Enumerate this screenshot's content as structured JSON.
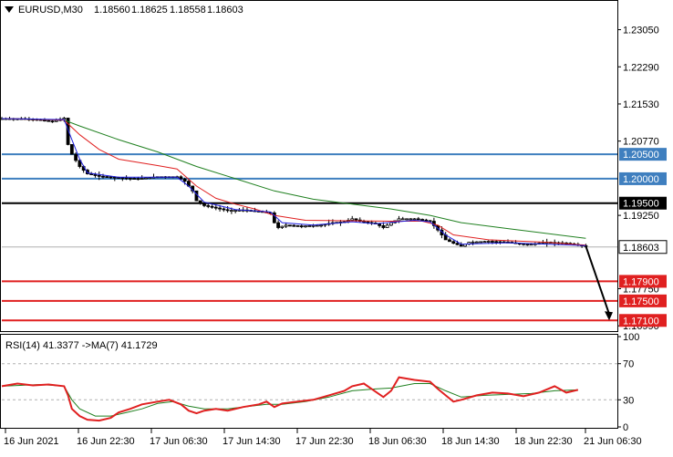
{
  "header": {
    "symbol_tf": "EURUSD,M30",
    "open": "1.18560",
    "high": "1.18625",
    "low": "1.18558",
    "close": "1.18603",
    "menu_icon": "triangle-down-icon"
  },
  "chart_data": [
    {
      "type": "candlestick",
      "title": "",
      "price_ticks": [
        1.2305,
        1.2229,
        1.2153,
        1.2077,
        1.1925,
        1.1775,
        1.1699
      ],
      "ylim": [
        1.169,
        1.2362
      ],
      "x_ticks": [
        "16 Jun 2021",
        "16 Jun 22:30",
        "17 Jun 06:30",
        "17 Jun 14:30",
        "17 Jun 22:30",
        "18 Jun 06:30",
        "18 Jun 14:30",
        "18 Jun 22:30",
        "21 Jun 06:30"
      ],
      "close_path": [
        [
          0,
          1.2123
        ],
        [
          5,
          1.2123
        ],
        [
          9,
          1.2121
        ],
        [
          13,
          1.2117
        ],
        [
          16,
          1.2124
        ],
        [
          17,
          1.207
        ],
        [
          18,
          1.205
        ],
        [
          20,
          1.2025
        ],
        [
          22,
          1.201
        ],
        [
          25,
          1.2005
        ],
        [
          30,
          1.2002
        ],
        [
          35,
          1.2
        ],
        [
          40,
          1.2004
        ],
        [
          45,
          1.2004
        ],
        [
          47,
          1.1995
        ],
        [
          49,
          1.1975
        ],
        [
          50,
          1.1955
        ],
        [
          52,
          1.1945
        ],
        [
          55,
          1.194
        ],
        [
          58,
          1.1935
        ],
        [
          62,
          1.1936
        ],
        [
          66,
          1.1933
        ],
        [
          69,
          1.193
        ],
        [
          70,
          1.191
        ],
        [
          71,
          1.19
        ],
        [
          73,
          1.1905
        ],
        [
          77,
          1.1903
        ],
        [
          82,
          1.1905
        ],
        [
          85,
          1.191
        ],
        [
          88,
          1.1912
        ],
        [
          90,
          1.1918
        ],
        [
          92,
          1.1913
        ],
        [
          96,
          1.1908
        ],
        [
          98,
          1.19
        ],
        [
          100,
          1.191
        ],
        [
          102,
          1.1918
        ],
        [
          106,
          1.1918
        ],
        [
          110,
          1.1913
        ],
        [
          112,
          1.1895
        ],
        [
          114,
          1.1875
        ],
        [
          116,
          1.1868
        ],
        [
          118,
          1.1862
        ],
        [
          120,
          1.187
        ],
        [
          125,
          1.1872
        ],
        [
          130,
          1.187
        ],
        [
          135,
          1.1865
        ],
        [
          140,
          1.187
        ],
        [
          145,
          1.1868
        ],
        [
          150,
          1.1862
        ]
      ],
      "ma_fast": [
        [
          0,
          1.2123
        ],
        [
          16,
          1.2121
        ],
        [
          18,
          1.208
        ],
        [
          20,
          1.204
        ],
        [
          22,
          1.2012
        ],
        [
          30,
          1.2003
        ],
        [
          45,
          1.2003
        ],
        [
          48,
          1.1985
        ],
        [
          52,
          1.1952
        ],
        [
          60,
          1.1937
        ],
        [
          69,
          1.1932
        ],
        [
          72,
          1.191
        ],
        [
          80,
          1.1905
        ],
        [
          90,
          1.1912
        ],
        [
          96,
          1.1908
        ],
        [
          106,
          1.1915
        ],
        [
          110,
          1.1912
        ],
        [
          114,
          1.1885
        ],
        [
          118,
          1.1866
        ],
        [
          130,
          1.1869
        ],
        [
          150,
          1.1863
        ]
      ],
      "ma_mid": [
        [
          0,
          1.2123
        ],
        [
          16,
          1.212
        ],
        [
          20,
          1.209
        ],
        [
          25,
          1.206
        ],
        [
          30,
          1.204
        ],
        [
          40,
          1.2027
        ],
        [
          45,
          1.202
        ],
        [
          50,
          1.1985
        ],
        [
          55,
          1.196
        ],
        [
          60,
          1.1948
        ],
        [
          65,
          1.1938
        ],
        [
          70,
          1.1925
        ],
        [
          78,
          1.1915
        ],
        [
          88,
          1.1914
        ],
        [
          100,
          1.1913
        ],
        [
          108,
          1.1913
        ],
        [
          112,
          1.1905
        ],
        [
          116,
          1.1885
        ],
        [
          125,
          1.1875
        ],
        [
          140,
          1.187
        ],
        [
          150,
          1.1864
        ]
      ],
      "ma_slow": [
        [
          0,
          1.2123
        ],
        [
          16,
          1.212
        ],
        [
          20,
          1.2108
        ],
        [
          30,
          1.208
        ],
        [
          40,
          1.2055
        ],
        [
          50,
          1.2025
        ],
        [
          60,
          1.2
        ],
        [
          70,
          1.1975
        ],
        [
          80,
          1.1958
        ],
        [
          90,
          1.1948
        ],
        [
          100,
          1.1938
        ],
        [
          110,
          1.1925
        ],
        [
          118,
          1.191
        ],
        [
          130,
          1.1898
        ],
        [
          150,
          1.1878
        ]
      ],
      "levels": [
        {
          "label": "1.20500",
          "value": 1.205,
          "color": "#3f7fbf",
          "box_bg": "#3f7fbf",
          "text_color": "#ffffff"
        },
        {
          "label": "1.20000",
          "value": 1.2,
          "color": "#3f7fbf",
          "box_bg": "#3f7fbf",
          "text_color": "#ffffff"
        },
        {
          "label": "1.19500",
          "value": 1.195,
          "color": "#000000",
          "box_bg": "#000000",
          "text_color": "#ffffff"
        },
        {
          "label": "1.17900",
          "value": 1.179,
          "color": "#e02020",
          "box_bg": "#e02020",
          "text_color": "#ffffff"
        },
        {
          "label": "1.17500",
          "value": 1.175,
          "color": "#e02020",
          "box_bg": "#e02020",
          "text_color": "#ffffff"
        },
        {
          "label": "1.17100",
          "value": 1.171,
          "color": "#e02020",
          "box_bg": "#e02020",
          "text_color": "#ffffff"
        }
      ],
      "current_price": {
        "label": "1.18603",
        "value": 1.18603
      },
      "arrow": {
        "from": [
          150,
          1.1862
        ],
        "to": [
          156,
          1.1712
        ]
      },
      "colors": {
        "ma_fast": "#2020e0",
        "ma_mid": "#e02020",
        "ma_slow": "#208020",
        "bid_line": "#b0b0b0",
        "candles": "#000000"
      }
    },
    {
      "type": "line",
      "title": "RSI(14) 41.3377  ->MA(7) 41.1729",
      "ylim": [
        0,
        100
      ],
      "y_ticks": [
        100,
        70,
        30,
        0
      ],
      "levels": [
        70,
        30
      ],
      "rsi": [
        [
          0,
          45
        ],
        [
          4,
          48
        ],
        [
          8,
          46
        ],
        [
          12,
          47
        ],
        [
          16,
          45
        ],
        [
          17,
          35
        ],
        [
          18,
          20
        ],
        [
          20,
          12
        ],
        [
          22,
          8
        ],
        [
          25,
          7
        ],
        [
          28,
          10
        ],
        [
          30,
          16
        ],
        [
          33,
          20
        ],
        [
          36,
          25
        ],
        [
          40,
          28
        ],
        [
          43,
          30
        ],
        [
          46,
          25
        ],
        [
          48,
          18
        ],
        [
          50,
          15
        ],
        [
          52,
          18
        ],
        [
          55,
          20
        ],
        [
          58,
          18
        ],
        [
          62,
          22
        ],
        [
          66,
          25
        ],
        [
          68,
          28
        ],
        [
          70,
          22
        ],
        [
          72,
          26
        ],
        [
          76,
          28
        ],
        [
          80,
          30
        ],
        [
          84,
          35
        ],
        [
          88,
          40
        ],
        [
          90,
          45
        ],
        [
          93,
          48
        ],
        [
          95,
          42
        ],
        [
          98,
          33
        ],
        [
          100,
          40
        ],
        [
          102,
          55
        ],
        [
          106,
          52
        ],
        [
          110,
          50
        ],
        [
          112,
          42
        ],
        [
          114,
          35
        ],
        [
          116,
          28
        ],
        [
          118,
          30
        ],
        [
          122,
          35
        ],
        [
          126,
          38
        ],
        [
          130,
          37
        ],
        [
          134,
          34
        ],
        [
          138,
          38
        ],
        [
          142,
          45
        ],
        [
          145,
          38
        ],
        [
          148,
          41
        ]
      ],
      "rsi_ma": [
        [
          0,
          45
        ],
        [
          10,
          47
        ],
        [
          16,
          45
        ],
        [
          18,
          30
        ],
        [
          20,
          20
        ],
        [
          24,
          12
        ],
        [
          28,
          12
        ],
        [
          32,
          16
        ],
        [
          36,
          20
        ],
        [
          40,
          26
        ],
        [
          44,
          28
        ],
        [
          48,
          23
        ],
        [
          52,
          20
        ],
        [
          58,
          20
        ],
        [
          62,
          22
        ],
        [
          68,
          25
        ],
        [
          72,
          25
        ],
        [
          78,
          28
        ],
        [
          84,
          33
        ],
        [
          90,
          40
        ],
        [
          96,
          42
        ],
        [
          100,
          43
        ],
        [
          106,
          48
        ],
        [
          110,
          48
        ],
        [
          114,
          40
        ],
        [
          118,
          33
        ],
        [
          124,
          35
        ],
        [
          130,
          36
        ],
        [
          136,
          37
        ],
        [
          142,
          40
        ],
        [
          148,
          41
        ]
      ],
      "colors": {
        "rsi": "#e02020",
        "rsi_ma": "#208020"
      }
    }
  ]
}
